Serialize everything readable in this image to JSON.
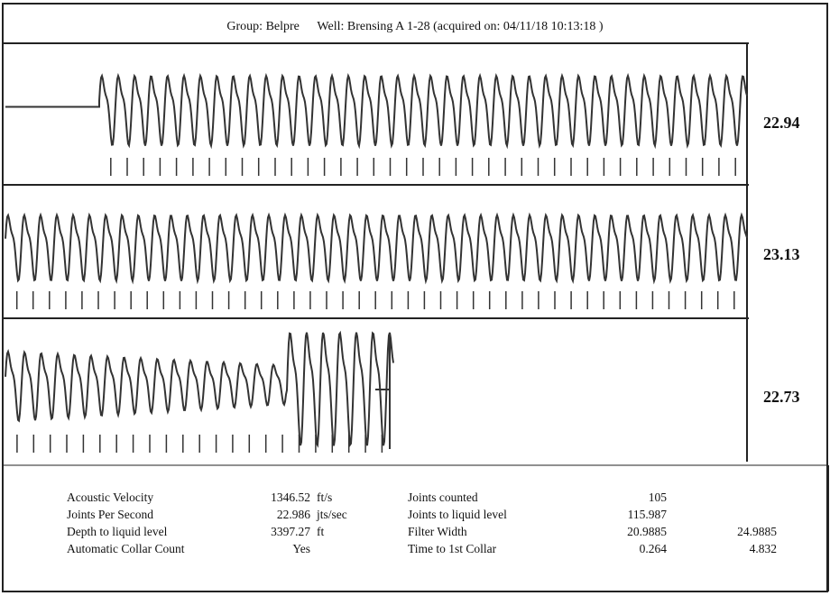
{
  "header": {
    "group_label": "Group: Belpre",
    "well_label": "Well: Brensing A 1-28 (acquired on: 04/11/18 10:13:18 )"
  },
  "chart_data": {
    "type": "line",
    "title": "Group: Belpre    Well: Brensing A 1-28 (acquired on: 04/11/18 10:13:18 )",
    "traces": [
      {
        "value_label": "22.94",
        "joints_per_second": 22.94
      },
      {
        "value_label": "23.13",
        "joints_per_second": 23.13
      },
      {
        "value_label": "22.73",
        "joints_per_second": 22.73
      }
    ],
    "grid": false
  },
  "results": {
    "left": [
      {
        "label": "Acoustic Velocity",
        "value": "1346.52",
        "unit": "ft/s"
      },
      {
        "label": "Joints Per Second",
        "value": "22.986",
        "unit": "jts/sec"
      },
      {
        "label": "Depth to liquid level",
        "value": "3397.27",
        "unit": "ft"
      },
      {
        "label": "Automatic Collar Count",
        "value": "Yes",
        "unit": ""
      }
    ],
    "right": [
      {
        "label": "Joints counted",
        "value": "105",
        "value2": ""
      },
      {
        "label": "Joints to liquid level",
        "value": "115.987",
        "value2": ""
      },
      {
        "label": "Filter Width",
        "value": "20.9885",
        "value2": "24.9885"
      },
      {
        "label": "Time to 1st Collar",
        "value": "0.264",
        "value2": "4.832"
      }
    ]
  }
}
